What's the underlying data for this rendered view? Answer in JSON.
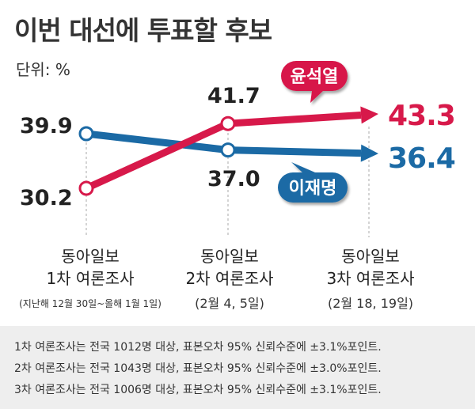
{
  "title": "이번 대선에 투표할 후보",
  "unit_label": "단위: %",
  "chart_data": {
    "type": "line",
    "title": "이번 대선에 투표할 후보",
    "ylabel": "%",
    "categories": [
      {
        "line1": "동아일보",
        "line2": "1차 여론조사",
        "line3": "(지난해 12월 30일~올해 1월 1일)"
      },
      {
        "line1": "동아일보",
        "line2": "2차 여론조사",
        "line3": "(2월 4, 5일)"
      },
      {
        "line1": "동아일보",
        "line2": "3차 여론조사",
        "line3": "(2월 18, 19일)"
      }
    ],
    "series": [
      {
        "name": "윤석열",
        "color": "#d7194a",
        "values": [
          30.2,
          41.7,
          43.3
        ],
        "labels": [
          "30.2",
          "41.7",
          "43.3"
        ]
      },
      {
        "name": "이재명",
        "color": "#1b6aa5",
        "values": [
          39.9,
          37.0,
          36.4
        ],
        "labels": [
          "39.9",
          "37.0",
          "36.4"
        ]
      }
    ],
    "ylim": [
      28,
      46
    ]
  },
  "footnotes": [
    "1차 여론조사는 전국 1012명 대상, 표본오차 95% 신뢰수준에 ±3.1%포인트.",
    "2차 여론조사는 전국 1043명 대상, 표본오차 95% 신뢰수준에 ±3.0%포인트.",
    "3차 여론조사는 전국 1006명 대상, 표본오차 95% 신뢰수준에 ±3.1%포인트."
  ]
}
